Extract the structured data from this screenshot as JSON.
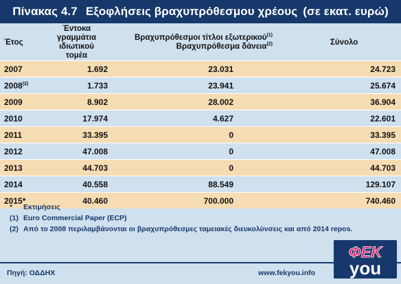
{
  "title": {
    "number": "Πίνακας 4.7",
    "text": "Εξοφλήσεις βραχυπρόθεσμου χρέους",
    "unit": "(σε εκατ. ευρώ)"
  },
  "table": {
    "headers": {
      "year": "Έτος",
      "tbills_line1": "Έντοκα γραμμάτια",
      "tbills_line2": "ιδιωτικού τομέα",
      "foreign_line1": "Βραχυπρόθεσμοι τίτλοι εξωτερικού",
      "foreign_line1_sup": "(1)",
      "foreign_line2": "Βραχυπρόθεσμα δάνεια",
      "foreign_line2_sup": "(2)",
      "total": "Σύνολο"
    },
    "rows": [
      {
        "year": "2007",
        "sup": "",
        "tbills": "1.692",
        "foreign": "23.031",
        "total": "24.723"
      },
      {
        "year": "2008",
        "sup": "(2)",
        "tbills": "1.733",
        "foreign": "23.941",
        "total": "25.674"
      },
      {
        "year": "2009",
        "sup": "",
        "tbills": "8.902",
        "foreign": "28.002",
        "total": "36.904"
      },
      {
        "year": "2010",
        "sup": "",
        "tbills": "17.974",
        "foreign": "4.627",
        "total": "22.601"
      },
      {
        "year": "2011",
        "sup": "",
        "tbills": "33.395",
        "foreign": "0",
        "total": "33.395"
      },
      {
        "year": "2012",
        "sup": "",
        "tbills": "47.008",
        "foreign": "0",
        "total": "47.008"
      },
      {
        "year": "2013",
        "sup": "",
        "tbills": "44.703",
        "foreign": "0",
        "total": "44.703"
      },
      {
        "year": "2014",
        "sup": "",
        "tbills": "40.558",
        "foreign": "88.549",
        "total": "129.107"
      },
      {
        "year": "2015*",
        "sup": "",
        "tbills": "40.460",
        "foreign": "700.000",
        "total": "740.460"
      }
    ]
  },
  "notes": [
    {
      "mark": "*",
      "text": "Εκτιμήσεις"
    },
    {
      "mark": "(1)",
      "text": "Euro Commercial Paper (ECP)"
    },
    {
      "mark": "(2)",
      "text": "Από το 2008 περιλαμβάνονται οι βραχυπρόθεσμες ταμειακές διευκολύνσεις και από 2014 repos."
    }
  ],
  "footer": {
    "source": "Πηγή: ΟΔΔΗΧ",
    "website": "www.fekyou.info"
  },
  "logo": {
    "line1": "ΦΕΚ",
    "line2": "you"
  },
  "colors": {
    "title_bg": "#16386b",
    "row_odd": "#f6dcb3",
    "row_even": "#cfe0ee",
    "logo_pink": "#e5196b"
  }
}
